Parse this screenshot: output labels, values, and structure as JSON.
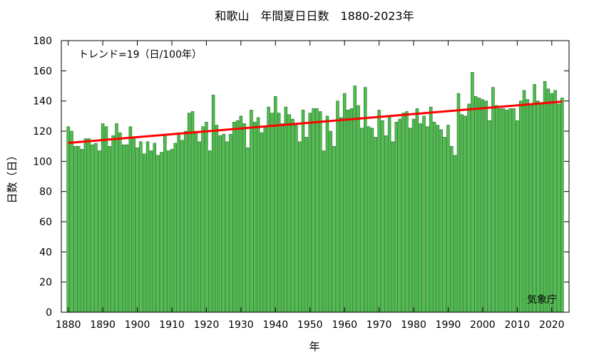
{
  "chart_data": {
    "type": "bar",
    "title": "和歌山　年間夏日日数　1880-2023年",
    "xlabel": "年",
    "ylabel": "日数（日）",
    "trend_text": "トレンド=19（日/100年）",
    "source_text": "気象庁",
    "x_ticks": [
      1880,
      1890,
      1900,
      1910,
      1920,
      1930,
      1940,
      1950,
      1960,
      1970,
      1980,
      1990,
      2000,
      2010,
      2020
    ],
    "y_ticks": [
      0,
      20,
      40,
      60,
      80,
      100,
      120,
      140,
      160,
      180
    ],
    "ylim": [
      0,
      180
    ],
    "xlim": [
      1878,
      2025
    ],
    "grid": false,
    "legend": "none",
    "colors": {
      "bar_fill": "#4fbf4f",
      "bar_stroke": "#1d6b1d",
      "trend": "#ff0000"
    },
    "series": [
      {
        "type": "bar",
        "x": [
          1880,
          1881,
          1882,
          1883,
          1884,
          1885,
          1886,
          1887,
          1888,
          1889,
          1890,
          1891,
          1892,
          1893,
          1894,
          1895,
          1896,
          1897,
          1898,
          1899,
          1900,
          1901,
          1902,
          1903,
          1904,
          1905,
          1906,
          1907,
          1908,
          1909,
          1910,
          1911,
          1912,
          1913,
          1914,
          1915,
          1916,
          1917,
          1918,
          1919,
          1920,
          1921,
          1922,
          1923,
          1924,
          1925,
          1926,
          1927,
          1928,
          1929,
          1930,
          1931,
          1932,
          1933,
          1934,
          1935,
          1936,
          1937,
          1938,
          1939,
          1940,
          1941,
          1942,
          1943,
          1944,
          1945,
          1946,
          1947,
          1948,
          1949,
          1950,
          1951,
          1952,
          1953,
          1954,
          1955,
          1956,
          1957,
          1958,
          1959,
          1960,
          1961,
          1962,
          1963,
          1964,
          1965,
          1966,
          1967,
          1968,
          1969,
          1970,
          1971,
          1972,
          1973,
          1974,
          1975,
          1976,
          1977,
          1978,
          1979,
          1980,
          1981,
          1982,
          1983,
          1984,
          1985,
          1986,
          1987,
          1988,
          1989,
          1990,
          1991,
          1992,
          1993,
          1994,
          1995,
          1996,
          1997,
          1998,
          1999,
          2000,
          2001,
          2002,
          2003,
          2004,
          2005,
          2006,
          2007,
          2008,
          2009,
          2010,
          2011,
          2012,
          2013,
          2014,
          2015,
          2016,
          2017,
          2018,
          2019,
          2020,
          2021,
          2022,
          2023
        ],
        "values": [
          123,
          120,
          110,
          110,
          108,
          115,
          115,
          111,
          112,
          107,
          125,
          123,
          110,
          117,
          125,
          119,
          111,
          111,
          123,
          116,
          109,
          113,
          105,
          113,
          107,
          112,
          104,
          106,
          117,
          107,
          108,
          112,
          119,
          114,
          120,
          132,
          133,
          120,
          113,
          123,
          126,
          107,
          144,
          124,
          117,
          118,
          113,
          118,
          126,
          127,
          130,
          125,
          109,
          134,
          126,
          129,
          119,
          123,
          136,
          132,
          143,
          132,
          125,
          136,
          131,
          128,
          124,
          113,
          134,
          116,
          132,
          135,
          135,
          133,
          107,
          130,
          120,
          110,
          140,
          129,
          145,
          134,
          135,
          150,
          137,
          122,
          149,
          123,
          122,
          116,
          134,
          127,
          117,
          130,
          113,
          126,
          128,
          132,
          133,
          122,
          128,
          135,
          125,
          130,
          123,
          136,
          126,
          124,
          121,
          116,
          124,
          110,
          104,
          145,
          131,
          130,
          138,
          159,
          143,
          142,
          141,
          140,
          127,
          149,
          137,
          135,
          135,
          134,
          135,
          135,
          127,
          140,
          147,
          141,
          138,
          151,
          140,
          139,
          153,
          148,
          145,
          147,
          138,
          142
        ]
      }
    ],
    "trend_line": {
      "x": [
        1880,
        2023
      ],
      "y": [
        112.2,
        139.6
      ]
    }
  }
}
